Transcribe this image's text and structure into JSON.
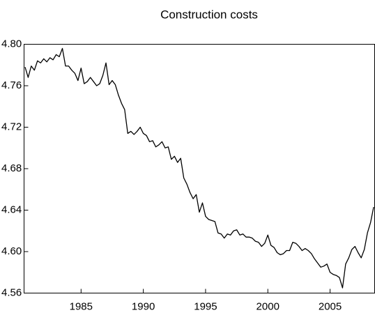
{
  "chart_data": {
    "type": "line",
    "title": "Construction costs",
    "x": [
      1980.5,
      1980.75,
      1981,
      1981.25,
      1981.5,
      1981.75,
      1982,
      1982.25,
      1982.5,
      1982.75,
      1983,
      1983.25,
      1983.5,
      1983.75,
      1984,
      1984.25,
      1984.5,
      1984.75,
      1985,
      1985.25,
      1985.5,
      1985.75,
      1986,
      1986.25,
      1986.5,
      1986.75,
      1987,
      1987.25,
      1987.5,
      1987.75,
      1988,
      1988.25,
      1988.5,
      1988.75,
      1989,
      1989.25,
      1989.5,
      1989.75,
      1990,
      1990.25,
      1990.5,
      1990.75,
      1991,
      1991.25,
      1991.5,
      1991.75,
      1992,
      1992.25,
      1992.5,
      1992.75,
      1993,
      1993.25,
      1993.5,
      1993.75,
      1994,
      1994.25,
      1994.5,
      1994.75,
      1995,
      1995.25,
      1995.5,
      1995.75,
      1996,
      1996.25,
      1996.5,
      1996.75,
      1997,
      1997.25,
      1997.5,
      1997.75,
      1998,
      1998.25,
      1998.5,
      1998.75,
      1999,
      1999.25,
      1999.5,
      1999.75,
      2000,
      2000.25,
      2000.5,
      2000.75,
      2001,
      2001.25,
      2001.5,
      2001.75,
      2002,
      2002.25,
      2002.5,
      2002.75,
      2003,
      2003.25,
      2003.5,
      2003.75,
      2004,
      2004.25,
      2004.5,
      2004.75,
      2005,
      2005.25,
      2005.5,
      2005.75,
      2006,
      2006.25,
      2006.5,
      2006.75,
      2007,
      2007.25,
      2007.5,
      2007.75,
      2008,
      2008.25,
      2008.5
    ],
    "values": [
      4.778,
      4.768,
      4.779,
      4.775,
      4.784,
      4.782,
      4.786,
      4.783,
      4.787,
      4.785,
      4.79,
      4.788,
      4.796,
      4.779,
      4.779,
      4.775,
      4.772,
      4.765,
      4.777,
      4.762,
      4.764,
      4.768,
      4.764,
      4.76,
      4.762,
      4.77,
      4.782,
      4.761,
      4.765,
      4.761,
      4.751,
      4.743,
      4.737,
      4.714,
      4.716,
      4.713,
      4.716,
      4.72,
      4.714,
      4.712,
      4.706,
      4.707,
      4.701,
      4.703,
      4.706,
      4.7,
      4.701,
      4.689,
      4.692,
      4.686,
      4.69,
      4.671,
      4.665,
      4.657,
      4.651,
      4.655,
      4.638,
      4.647,
      4.634,
      4.631,
      4.63,
      4.629,
      4.618,
      4.617,
      4.613,
      4.617,
      4.616,
      4.62,
      4.621,
      4.616,
      4.617,
      4.614,
      4.614,
      4.613,
      4.61,
      4.609,
      4.605,
      4.608,
      4.616,
      4.606,
      4.604,
      4.599,
      4.597,
      4.598,
      4.601,
      4.601,
      4.609,
      4.608,
      4.605,
      4.601,
      4.603,
      4.601,
      4.598,
      4.593,
      4.589,
      4.585,
      4.586,
      4.588,
      4.58,
      4.578,
      4.577,
      4.575,
      4.565,
      4.588,
      4.594,
      4.602,
      4.605,
      4.599,
      4.594,
      4.602,
      4.618,
      4.628,
      4.643
    ],
    "color": "#000000",
    "xlim": [
      1980.42,
      2008.58
    ],
    "xticks": [
      1985,
      1990,
      1995,
      2000,
      2005
    ],
    "ylim": [
      4.56,
      4.8
    ],
    "yticks": [
      {
        "value": 4.56,
        "label": "4.56"
      },
      {
        "value": 4.6,
        "label": "4.60"
      },
      {
        "value": 4.64,
        "label": "4.64"
      },
      {
        "value": 4.68,
        "label": "4.68"
      },
      {
        "value": 4.72,
        "label": "4.72"
      },
      {
        "value": 4.76,
        "label": "4.76"
      },
      {
        "value": 4.8,
        "label": "4.80"
      }
    ]
  }
}
